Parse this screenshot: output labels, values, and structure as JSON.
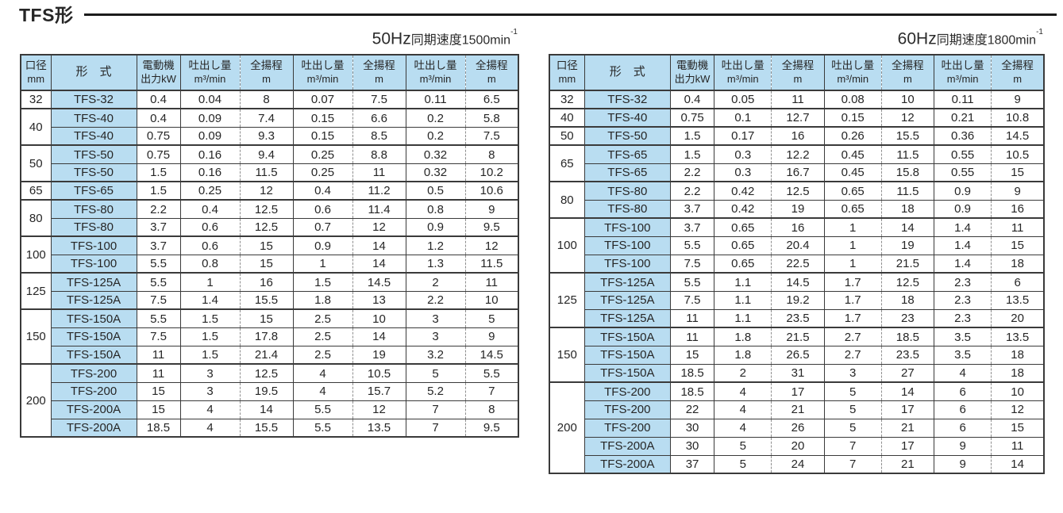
{
  "page": {
    "title": "TFS形"
  },
  "colors": {
    "header_blue": "#b9ddf1",
    "border": "#3a3a3a",
    "dashed": "#8f8f8f",
    "text": "#262626"
  },
  "header": {
    "diameter": {
      "line1": "口径",
      "line2": "mm"
    },
    "model": "形　式",
    "motor": {
      "line1": "電動機",
      "line2": "出力kW"
    },
    "discharge": {
      "line1": "吐出し量",
      "line2": "m³/min"
    },
    "head": {
      "line1": "全揚程",
      "line2": "m"
    }
  },
  "tables": [
    {
      "id": "50hz",
      "caption": {
        "hz": "50Hz",
        "text": "同期速度1500min",
        "sup": "-1"
      },
      "groups": [
        {
          "diameter": "32",
          "rows": [
            {
              "model": "TFS-32",
              "values": [
                "0.4",
                "0.04",
                "8",
                "0.07",
                "7.5",
                "0.11",
                "6.5"
              ]
            }
          ]
        },
        {
          "diameter": "40",
          "rows": [
            {
              "model": "TFS-40",
              "values": [
                "0.4",
                "0.09",
                "7.4",
                "0.15",
                "6.6",
                "0.2",
                "5.8"
              ]
            },
            {
              "model": "TFS-40",
              "values": [
                "0.75",
                "0.09",
                "9.3",
                "0.15",
                "8.5",
                "0.2",
                "7.5"
              ]
            }
          ]
        },
        {
          "diameter": "50",
          "rows": [
            {
              "model": "TFS-50",
              "values": [
                "0.75",
                "0.16",
                "9.4",
                "0.25",
                "8.8",
                "0.32",
                "8"
              ]
            },
            {
              "model": "TFS-50",
              "values": [
                "1.5",
                "0.16",
                "11.5",
                "0.25",
                "11",
                "0.32",
                "10.2"
              ]
            }
          ]
        },
        {
          "diameter": "65",
          "rows": [
            {
              "model": "TFS-65",
              "values": [
                "1.5",
                "0.25",
                "12",
                "0.4",
                "11.2",
                "0.5",
                "10.6"
              ]
            }
          ]
        },
        {
          "diameter": "80",
          "rows": [
            {
              "model": "TFS-80",
              "values": [
                "2.2",
                "0.4",
                "12.5",
                "0.6",
                "11.4",
                "0.8",
                "9"
              ]
            },
            {
              "model": "TFS-80",
              "values": [
                "3.7",
                "0.6",
                "12.5",
                "0.7",
                "12",
                "0.9",
                "9.5"
              ]
            }
          ]
        },
        {
          "diameter": "100",
          "rows": [
            {
              "model": "TFS-100",
              "values": [
                "3.7",
                "0.6",
                "15",
                "0.9",
                "14",
                "1.2",
                "12"
              ]
            },
            {
              "model": "TFS-100",
              "values": [
                "5.5",
                "0.8",
                "15",
                "1",
                "14",
                "1.3",
                "11.5"
              ]
            }
          ]
        },
        {
          "diameter": "125",
          "rows": [
            {
              "model": "TFS-125A",
              "values": [
                "5.5",
                "1",
                "16",
                "1.5",
                "14.5",
                "2",
                "11"
              ]
            },
            {
              "model": "TFS-125A",
              "values": [
                "7.5",
                "1.4",
                "15.5",
                "1.8",
                "13",
                "2.2",
                "10"
              ]
            }
          ]
        },
        {
          "diameter": "150",
          "rows": [
            {
              "model": "TFS-150A",
              "values": [
                "5.5",
                "1.5",
                "15",
                "2.5",
                "10",
                "3",
                "5"
              ]
            },
            {
              "model": "TFS-150A",
              "values": [
                "7.5",
                "1.5",
                "17.8",
                "2.5",
                "14",
                "3",
                "9"
              ]
            },
            {
              "model": "TFS-150A",
              "values": [
                "11",
                "1.5",
                "21.4",
                "2.5",
                "19",
                "3.2",
                "14.5"
              ]
            }
          ]
        },
        {
          "diameter": "200",
          "rows": [
            {
              "model": "TFS-200",
              "values": [
                "11",
                "3",
                "12.5",
                "4",
                "10.5",
                "5",
                "5.5"
              ]
            },
            {
              "model": "TFS-200",
              "values": [
                "15",
                "3",
                "19.5",
                "4",
                "15.7",
                "5.2",
                "7"
              ]
            },
            {
              "model": "TFS-200A",
              "values": [
                "15",
                "4",
                "14",
                "5.5",
                "12",
                "7",
                "8"
              ]
            },
            {
              "model": "TFS-200A",
              "values": [
                "18.5",
                "4",
                "15.5",
                "5.5",
                "13.5",
                "7",
                "9.5"
              ]
            }
          ]
        }
      ]
    },
    {
      "id": "60hz",
      "caption": {
        "hz": "60Hz",
        "text": "同期速度1800min",
        "sup": "-1"
      },
      "groups": [
        {
          "diameter": "32",
          "rows": [
            {
              "model": "TFS-32",
              "values": [
                "0.4",
                "0.05",
                "11",
                "0.08",
                "10",
                "0.11",
                "9"
              ]
            }
          ]
        },
        {
          "diameter": "40",
          "rows": [
            {
              "model": "TFS-40",
              "values": [
                "0.75",
                "0.1",
                "12.7",
                "0.15",
                "12",
                "0.21",
                "10.8"
              ]
            }
          ]
        },
        {
          "diameter": "50",
          "rows": [
            {
              "model": "TFS-50",
              "values": [
                "1.5",
                "0.17",
                "16",
                "0.26",
                "15.5",
                "0.36",
                "14.5"
              ]
            }
          ]
        },
        {
          "diameter": "65",
          "rows": [
            {
              "model": "TFS-65",
              "values": [
                "1.5",
                "0.3",
                "12.2",
                "0.45",
                "11.5",
                "0.55",
                "10.5"
              ]
            },
            {
              "model": "TFS-65",
              "values": [
                "2.2",
                "0.3",
                "16.7",
                "0.45",
                "15.8",
                "0.55",
                "15"
              ]
            }
          ]
        },
        {
          "diameter": "80",
          "rows": [
            {
              "model": "TFS-80",
              "values": [
                "2.2",
                "0.42",
                "12.5",
                "0.65",
                "11.5",
                "0.9",
                "9"
              ]
            },
            {
              "model": "TFS-80",
              "values": [
                "3.7",
                "0.42",
                "19",
                "0.65",
                "18",
                "0.9",
                "16"
              ]
            }
          ]
        },
        {
          "diameter": "100",
          "rows": [
            {
              "model": "TFS-100",
              "values": [
                "3.7",
                "0.65",
                "16",
                "1",
                "14",
                "1.4",
                "11"
              ]
            },
            {
              "model": "TFS-100",
              "values": [
                "5.5",
                "0.65",
                "20.4",
                "1",
                "19",
                "1.4",
                "15"
              ]
            },
            {
              "model": "TFS-100",
              "values": [
                "7.5",
                "0.65",
                "22.5",
                "1",
                "21.5",
                "1.4",
                "18"
              ]
            }
          ]
        },
        {
          "diameter": "125",
          "rows": [
            {
              "model": "TFS-125A",
              "values": [
                "5.5",
                "1.1",
                "14.5",
                "1.7",
                "12.5",
                "2.3",
                "6"
              ]
            },
            {
              "model": "TFS-125A",
              "values": [
                "7.5",
                "1.1",
                "19.2",
                "1.7",
                "18",
                "2.3",
                "13.5"
              ]
            },
            {
              "model": "TFS-125A",
              "values": [
                "11",
                "1.1",
                "23.5",
                "1.7",
                "23",
                "2.3",
                "20"
              ]
            }
          ]
        },
        {
          "diameter": "150",
          "rows": [
            {
              "model": "TFS-150A",
              "values": [
                "11",
                "1.8",
                "21.5",
                "2.7",
                "18.5",
                "3.5",
                "13.5"
              ]
            },
            {
              "model": "TFS-150A",
              "values": [
                "15",
                "1.8",
                "26.5",
                "2.7",
                "23.5",
                "3.5",
                "18"
              ]
            },
            {
              "model": "TFS-150A",
              "values": [
                "18.5",
                "2",
                "31",
                "3",
                "27",
                "4",
                "18"
              ]
            }
          ]
        },
        {
          "diameter": "200",
          "rows": [
            {
              "model": "TFS-200",
              "values": [
                "18.5",
                "4",
                "17",
                "5",
                "14",
                "6",
                "10"
              ]
            },
            {
              "model": "TFS-200",
              "values": [
                "22",
                "4",
                "21",
                "5",
                "17",
                "6",
                "12"
              ]
            },
            {
              "model": "TFS-200",
              "values": [
                "30",
                "4",
                "26",
                "5",
                "21",
                "6",
                "15"
              ]
            },
            {
              "model": "TFS-200A",
              "values": [
                "30",
                "5",
                "20",
                "7",
                "17",
                "9",
                "11"
              ]
            },
            {
              "model": "TFS-200A",
              "values": [
                "37",
                "5",
                "24",
                "7",
                "21",
                "9",
                "14"
              ]
            }
          ]
        }
      ]
    }
  ]
}
